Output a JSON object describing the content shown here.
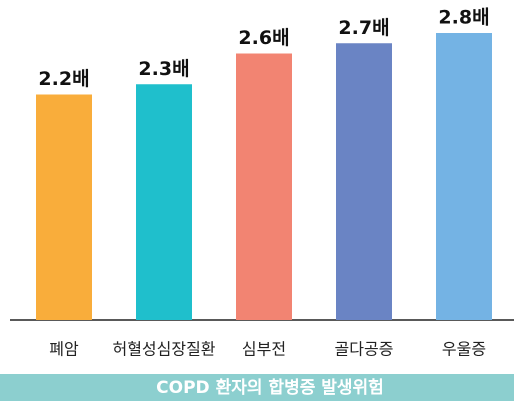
{
  "chart_data": {
    "type": "bar",
    "title": "COPD 환자의 합병증 발생위험",
    "categories": [
      "폐암",
      "허혈성심장질환",
      "심부전",
      "골다공증",
      "우울증"
    ],
    "values": [
      2.2,
      2.3,
      2.6,
      2.7,
      2.8
    ],
    "value_labels": [
      "2.2배",
      "2.3배",
      "2.6배",
      "2.7배",
      "2.8배"
    ],
    "colors": [
      "#f9ad3b",
      "#1fbfcc",
      "#f28472",
      "#6a84c4",
      "#74b3e4"
    ]
  }
}
